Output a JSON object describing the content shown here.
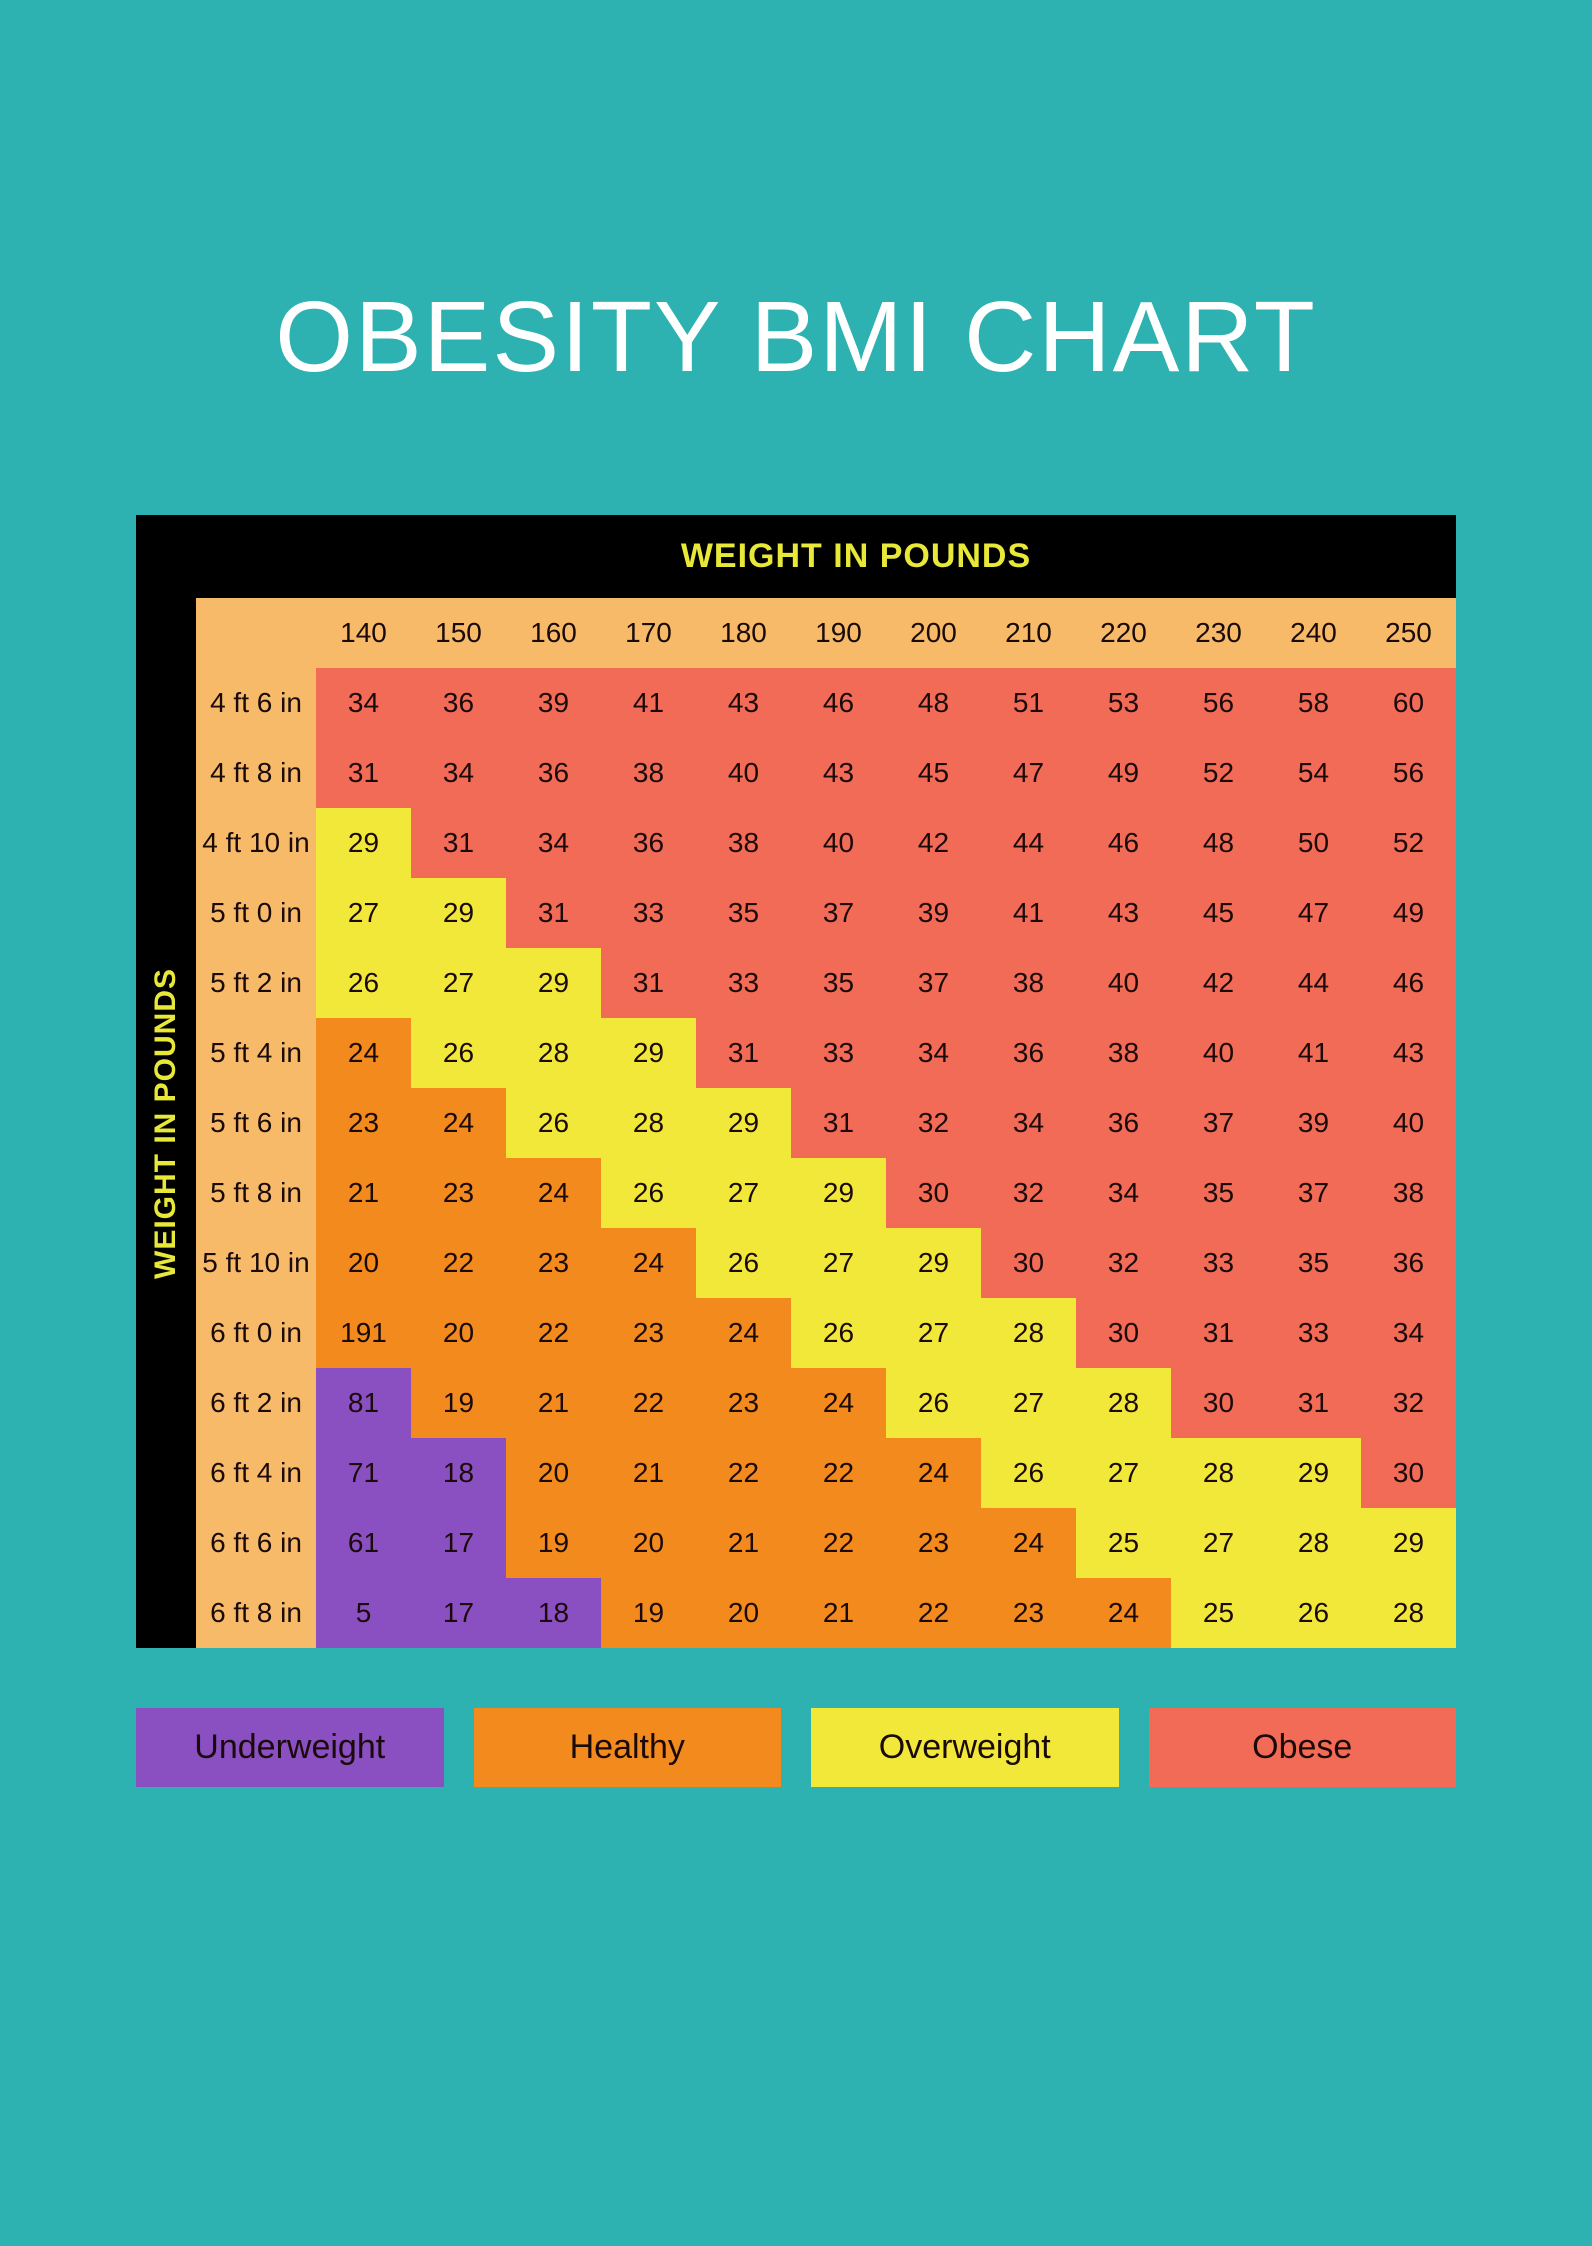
{
  "title": "OBESITY BMI CHART",
  "x_axis_label": "WEIGHT IN POUNDS",
  "y_axis_label": "WEIGHT IN POUNDS",
  "colors": {
    "background": "#2db1b1",
    "title_text": "#ffffff",
    "frame_bg": "#000000",
    "axis_label_text": "#e8e838",
    "cell_text": "#1a0a0a",
    "categories": {
      "header": "#f7ba68",
      "underweight": "#8a4fc1",
      "healthy": "#f28a1e",
      "overweight": "#f2e83a",
      "obese": "#f26b56"
    }
  },
  "typography": {
    "title_fontsize": 100,
    "axis_label_fontsize": 34,
    "cell_fontsize": 28,
    "legend_fontsize": 34
  },
  "weight_columns": [
    "140",
    "150",
    "160",
    "170",
    "180",
    "190",
    "200",
    "210",
    "220",
    "230",
    "240",
    "250"
  ],
  "height_rows": [
    "4 ft 6 in",
    "4 ft 8 in",
    "4 ft 10 in",
    "5 ft 0 in",
    "5 ft 2 in",
    "5 ft 4 in",
    "5 ft 6 in",
    "5 ft 8 in",
    "5 ft 10 in",
    "6 ft 0 in",
    "6 ft 2 in",
    "6 ft 4 in",
    "6 ft 6 in",
    "6 ft 8 in"
  ],
  "bmi_values": [
    [
      "34",
      "36",
      "39",
      "41",
      "43",
      "46",
      "48",
      "51",
      "53",
      "56",
      "58",
      "60"
    ],
    [
      "31",
      "34",
      "36",
      "38",
      "40",
      "43",
      "45",
      "47",
      "49",
      "52",
      "54",
      "56"
    ],
    [
      "29",
      "31",
      "34",
      "36",
      "38",
      "40",
      "42",
      "44",
      "46",
      "48",
      "50",
      "52"
    ],
    [
      "27",
      "29",
      "31",
      "33",
      "35",
      "37",
      "39",
      "41",
      "43",
      "45",
      "47",
      "49"
    ],
    [
      "26",
      "27",
      "29",
      "31",
      "33",
      "35",
      "37",
      "38",
      "40",
      "42",
      "44",
      "46"
    ],
    [
      "24",
      "26",
      "28",
      "29",
      "31",
      "33",
      "34",
      "36",
      "38",
      "40",
      "41",
      "43"
    ],
    [
      "23",
      "24",
      "26",
      "28",
      "29",
      "31",
      "32",
      "34",
      "36",
      "37",
      "39",
      "40"
    ],
    [
      "21",
      "23",
      "24",
      "26",
      "27",
      "29",
      "30",
      "32",
      "34",
      "35",
      "37",
      "38"
    ],
    [
      "20",
      "22",
      "23",
      "24",
      "26",
      "27",
      "29",
      "30",
      "32",
      "33",
      "35",
      "36"
    ],
    [
      "191",
      "20",
      "22",
      "23",
      "24",
      "26",
      "27",
      "28",
      "30",
      "31",
      "33",
      "34"
    ],
    [
      "81",
      "19",
      "21",
      "22",
      "23",
      "24",
      "26",
      "27",
      "28",
      "30",
      "31",
      "32"
    ],
    [
      "71",
      "18",
      "20",
      "21",
      "22",
      "22",
      "24",
      "26",
      "27",
      "28",
      "29",
      "30"
    ],
    [
      "61",
      "17",
      "19",
      "20",
      "21",
      "22",
      "23",
      "24",
      "25",
      "27",
      "28",
      "29"
    ],
    [
      "5",
      "17",
      "18",
      "19",
      "20",
      "21",
      "22",
      "23",
      "24",
      "25",
      "26",
      "28"
    ]
  ],
  "bmi_categories": [
    [
      "obese",
      "obese",
      "obese",
      "obese",
      "obese",
      "obese",
      "obese",
      "obese",
      "obese",
      "obese",
      "obese",
      "obese"
    ],
    [
      "obese",
      "obese",
      "obese",
      "obese",
      "obese",
      "obese",
      "obese",
      "obese",
      "obese",
      "obese",
      "obese",
      "obese"
    ],
    [
      "overweight",
      "obese",
      "obese",
      "obese",
      "obese",
      "obese",
      "obese",
      "obese",
      "obese",
      "obese",
      "obese",
      "obese"
    ],
    [
      "overweight",
      "overweight",
      "obese",
      "obese",
      "obese",
      "obese",
      "obese",
      "obese",
      "obese",
      "obese",
      "obese",
      "obese"
    ],
    [
      "overweight",
      "overweight",
      "overweight",
      "obese",
      "obese",
      "obese",
      "obese",
      "obese",
      "obese",
      "obese",
      "obese",
      "obese"
    ],
    [
      "healthy",
      "overweight",
      "overweight",
      "overweight",
      "obese",
      "obese",
      "obese",
      "obese",
      "obese",
      "obese",
      "obese",
      "obese"
    ],
    [
      "healthy",
      "healthy",
      "overweight",
      "overweight",
      "overweight",
      "obese",
      "obese",
      "obese",
      "obese",
      "obese",
      "obese",
      "obese"
    ],
    [
      "healthy",
      "healthy",
      "healthy",
      "overweight",
      "overweight",
      "overweight",
      "obese",
      "obese",
      "obese",
      "obese",
      "obese",
      "obese"
    ],
    [
      "healthy",
      "healthy",
      "healthy",
      "healthy",
      "overweight",
      "overweight",
      "overweight",
      "obese",
      "obese",
      "obese",
      "obese",
      "obese"
    ],
    [
      "healthy",
      "healthy",
      "healthy",
      "healthy",
      "healthy",
      "overweight",
      "overweight",
      "overweight",
      "obese",
      "obese",
      "obese",
      "obese"
    ],
    [
      "underweight",
      "healthy",
      "healthy",
      "healthy",
      "healthy",
      "healthy",
      "overweight",
      "overweight",
      "overweight",
      "obese",
      "obese",
      "obese"
    ],
    [
      "underweight",
      "underweight",
      "healthy",
      "healthy",
      "healthy",
      "healthy",
      "healthy",
      "overweight",
      "overweight",
      "overweight",
      "overweight",
      "obese"
    ],
    [
      "underweight",
      "underweight",
      "healthy",
      "healthy",
      "healthy",
      "healthy",
      "healthy",
      "healthy",
      "overweight",
      "overweight",
      "overweight",
      "overweight"
    ],
    [
      "underweight",
      "underweight",
      "underweight",
      "healthy",
      "healthy",
      "healthy",
      "healthy",
      "healthy",
      "healthy",
      "overweight",
      "overweight",
      "overweight"
    ]
  ],
  "legend": [
    {
      "label": "Underweight",
      "category": "underweight"
    },
    {
      "label": "Healthy",
      "category": "healthy"
    },
    {
      "label": "Overweight",
      "category": "overweight"
    },
    {
      "label": "Obese",
      "category": "obese"
    }
  ]
}
